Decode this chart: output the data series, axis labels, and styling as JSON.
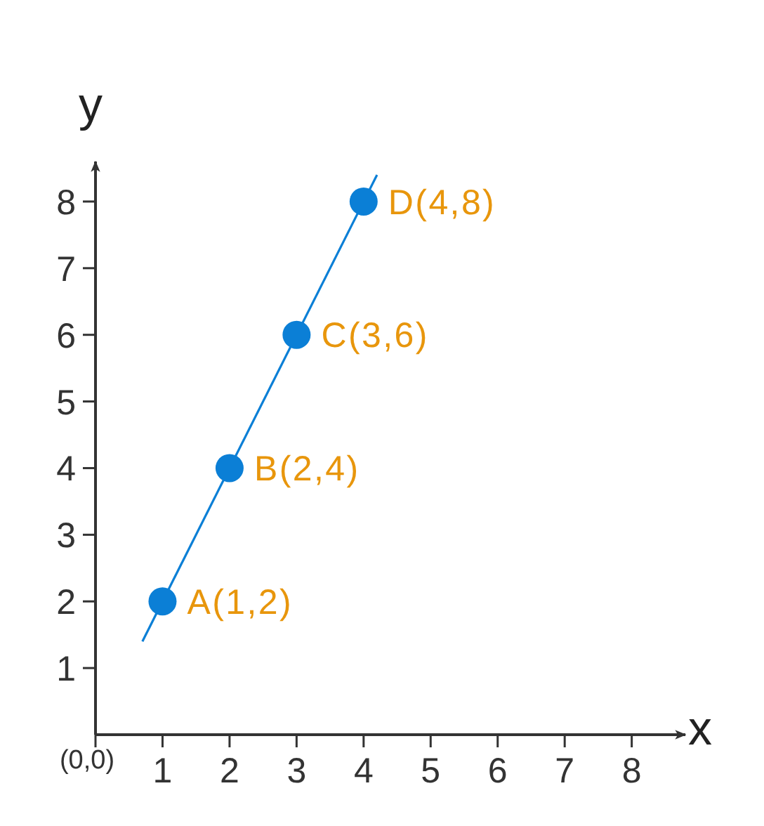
{
  "chart_data": {
    "type": "scatter",
    "xlabel": "x",
    "ylabel": "y",
    "xlim": [
      0,
      8.8
    ],
    "ylim": [
      0,
      8.6
    ],
    "xticks": [
      {
        "value": 0,
        "label": "(0,0)"
      },
      1,
      2,
      3,
      4,
      5,
      6,
      7,
      8
    ],
    "yticks": [
      1,
      2,
      3,
      4,
      5,
      6,
      7,
      8
    ],
    "marker": "circle",
    "series": [
      {
        "type": "line",
        "color": "#0b7fd6",
        "line_style": "solid",
        "marker": "none",
        "x": [
          0.7,
          4.2
        ],
        "values": [
          1.4,
          8.4
        ]
      },
      {
        "type": "scatter",
        "color": "#0b7fd6",
        "x": [
          1,
          2,
          3,
          4
        ],
        "values": [
          2,
          4,
          6,
          8
        ],
        "value_labels": [
          "A(1,2)",
          "B(2,4)",
          "C(3,6)",
          "D(4,8)"
        ]
      }
    ]
  }
}
